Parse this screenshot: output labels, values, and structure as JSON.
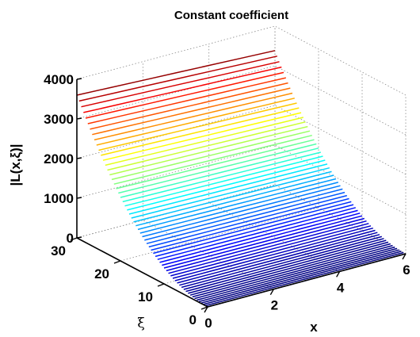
{
  "chart_data": {
    "type": "surface-3d",
    "title": "Constant coefficient",
    "xlabel": "x",
    "ylabel": "ξ",
    "zlabel": "|L(x,ξ)|",
    "xlim": [
      0,
      6
    ],
    "ylim": [
      0,
      30
    ],
    "zlim": [
      0,
      4000
    ],
    "x_ticks": [
      0,
      2,
      4,
      6
    ],
    "x_tick_labels": [
      "0",
      "2",
      "4",
      "6"
    ],
    "y_ticks": [
      0,
      10,
      20,
      30
    ],
    "y_tick_labels": [
      "0",
      "10",
      "20",
      "30"
    ],
    "z_ticks": [
      0,
      1000,
      2000,
      3000,
      4000
    ],
    "z_tick_labels": [
      "0",
      "1000",
      "2000",
      "3000",
      "4000"
    ],
    "grid": true,
    "colormap": "jet",
    "mesh_style": "lines along x at constant ξ",
    "xi_levels": [
      0.0,
      0.5,
      1.0,
      1.5,
      2.0,
      2.5,
      3.0,
      3.5,
      4.0,
      4.5,
      5.0,
      5.5,
      6.0,
      6.5,
      7.0,
      7.5,
      8.0,
      8.5,
      9.0,
      9.5,
      10.0,
      10.5,
      11.0,
      11.5,
      12.0,
      12.5,
      13.0,
      13.5,
      14.0,
      14.5,
      15.0,
      15.5,
      16.0,
      16.5,
      17.0,
      17.5,
      18.0,
      18.5,
      19.0,
      19.5,
      20.0,
      20.5,
      21.0,
      21.5,
      22.0,
      22.5,
      23.0,
      23.5,
      24.0,
      24.5,
      25.0,
      25.5,
      26.0,
      26.5,
      27.0,
      27.5,
      28.0,
      28.5,
      29.0,
      29.5,
      30.0
    ],
    "x_samples": [
      0,
      1,
      2,
      3,
      4,
      5,
      6
    ],
    "surface_model": "|L| ≈ 4·ξ²·(1 − 0.01·x)",
    "value_at_xi_30_x_0": 3600,
    "value_at_xi_30_x_6": 3380
  }
}
